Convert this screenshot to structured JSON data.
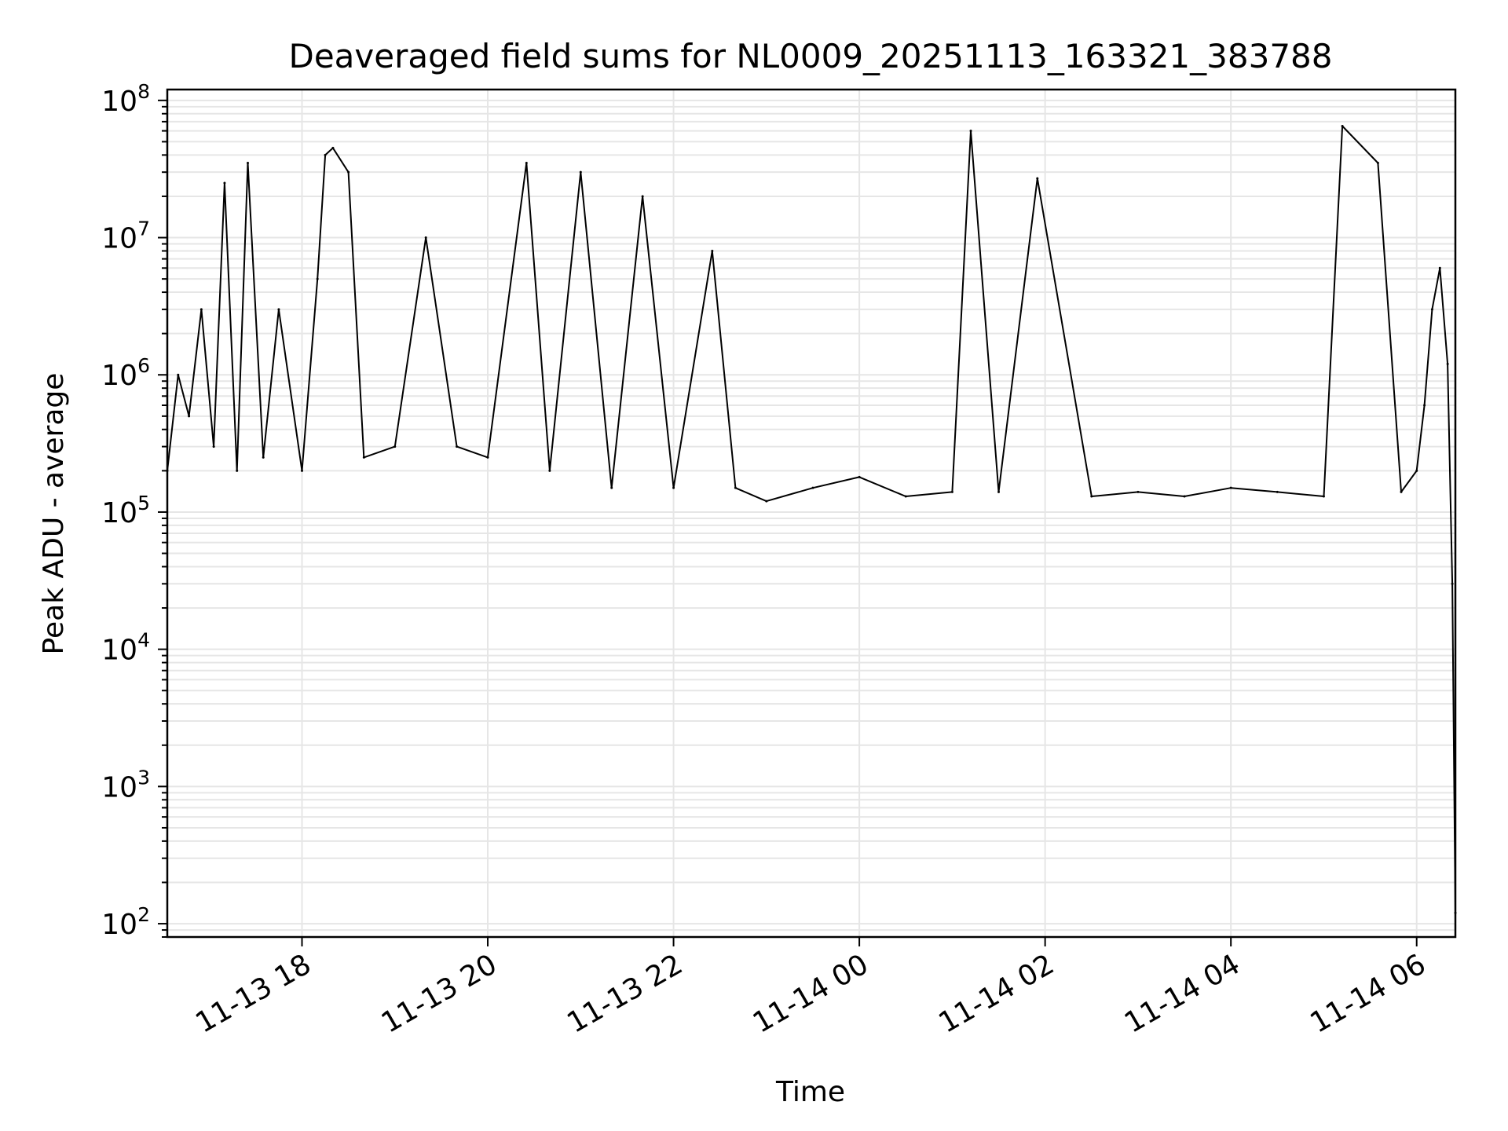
{
  "chart_data": {
    "type": "line",
    "title": "Deaveraged field sums for NL0009_20251113_163321_383788",
    "xlabel": "Time",
    "ylabel": "Peak ADU - average",
    "y_scale": "log",
    "ylim": [
      80,
      120000000
    ],
    "xlim": [
      "2025-11-13 16:33",
      "2025-11-14 06:25"
    ],
    "grid": true,
    "line_color": "#000000",
    "grid_color": "#e6e6e6",
    "x_ticks": [
      {
        "value": "2025-11-13 18:00",
        "label": "11-13 18"
      },
      {
        "value": "2025-11-13 20:00",
        "label": "11-13 20"
      },
      {
        "value": "2025-11-13 22:00",
        "label": "11-13 22"
      },
      {
        "value": "2025-11-14 00:00",
        "label": "11-14 00"
      },
      {
        "value": "2025-11-14 02:00",
        "label": "11-14 02"
      },
      {
        "value": "2025-11-14 04:00",
        "label": "11-14 04"
      },
      {
        "value": "2025-11-14 06:00",
        "label": "11-14 06"
      }
    ],
    "y_ticks": [
      {
        "value": 100,
        "base": "10",
        "exp": "2"
      },
      {
        "value": 1000,
        "base": "10",
        "exp": "3"
      },
      {
        "value": 10000,
        "base": "10",
        "exp": "4"
      },
      {
        "value": 100000,
        "base": "10",
        "exp": "5"
      },
      {
        "value": 1000000,
        "base": "10",
        "exp": "6"
      },
      {
        "value": 10000000,
        "base": "10",
        "exp": "7"
      },
      {
        "value": 100000000,
        "base": "10",
        "exp": "8"
      }
    ],
    "series": [
      {
        "x": [
          "2025-11-13 16:33",
          "2025-11-13 16:40",
          "2025-11-13 16:47",
          "2025-11-13 16:55",
          "2025-11-13 17:03",
          "2025-11-13 17:10",
          "2025-11-13 17:18",
          "2025-11-13 17:25",
          "2025-11-13 17:35",
          "2025-11-13 17:45",
          "2025-11-13 18:00",
          "2025-11-13 18:10",
          "2025-11-13 18:15",
          "2025-11-13 18:20",
          "2025-11-13 18:30",
          "2025-11-13 18:40",
          "2025-11-13 19:00",
          "2025-11-13 19:20",
          "2025-11-13 19:40",
          "2025-11-13 20:00",
          "2025-11-13 20:25",
          "2025-11-13 20:40",
          "2025-11-13 21:00",
          "2025-11-13 21:20",
          "2025-11-13 21:40",
          "2025-11-13 22:00",
          "2025-11-13 22:25",
          "2025-11-13 22:40",
          "2025-11-13 23:00",
          "2025-11-13 23:30",
          "2025-11-14 00:00",
          "2025-11-14 00:30",
          "2025-11-14 01:00",
          "2025-11-14 01:12",
          "2025-11-14 01:30",
          "2025-11-14 01:55",
          "2025-11-14 02:30",
          "2025-11-14 03:00",
          "2025-11-14 03:30",
          "2025-11-14 04:00",
          "2025-11-14 04:30",
          "2025-11-14 05:00",
          "2025-11-14 05:12",
          "2025-11-14 05:35",
          "2025-11-14 05:50",
          "2025-11-14 06:00",
          "2025-11-14 06:05",
          "2025-11-14 06:10",
          "2025-11-14 06:15",
          "2025-11-14 06:20",
          "2025-11-14 06:23",
          "2025-11-14 06:25"
        ],
        "y": [
          200000,
          1000000,
          500000,
          3000000,
          300000,
          25000000,
          200000,
          35000000,
          250000,
          3000000,
          200000,
          5000000,
          40000000,
          45000000,
          30000000,
          250000,
          300000,
          10000000,
          300000,
          250000,
          35000000,
          200000,
          30000000,
          150000,
          20000000,
          150000,
          8000000,
          150000,
          120000,
          150000,
          180000,
          130000,
          140000,
          60000000,
          140000,
          27000000,
          130000,
          140000,
          130000,
          150000,
          140000,
          130000,
          65000000,
          35000000,
          140000,
          200000,
          600000,
          3000000,
          6000000,
          1200000,
          30000,
          120
        ]
      }
    ]
  }
}
